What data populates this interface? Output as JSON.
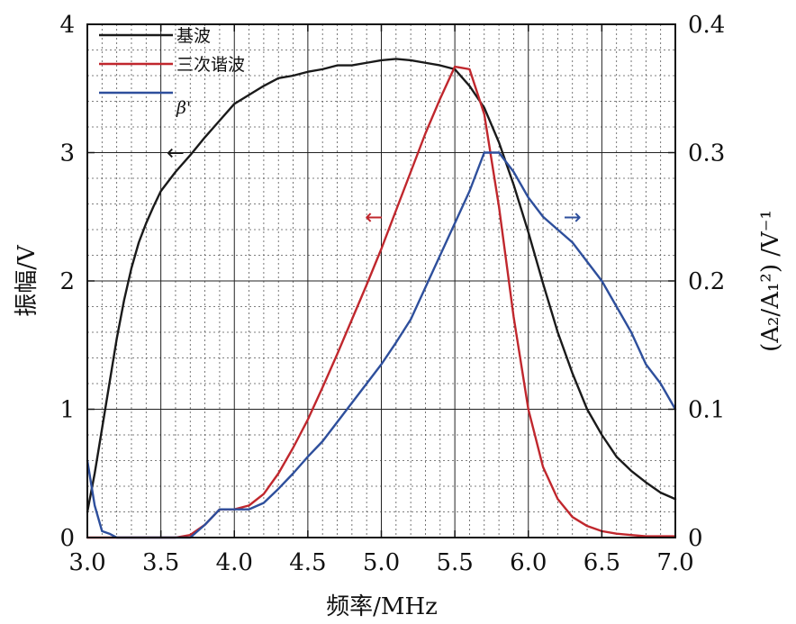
{
  "chart_data": {
    "type": "line",
    "xlabel": "频率/MHz",
    "ylabel_left": "振幅/V",
    "ylabel_right": "(A₂/A₁²) /V⁻¹",
    "xlim": [
      3.0,
      7.0
    ],
    "ylim_left": [
      0,
      4
    ],
    "ylim_right": [
      0,
      0.4
    ],
    "x_ticks": [
      "3.0",
      "3.5",
      "4.0",
      "4.5",
      "5.0",
      "5.5",
      "6.0",
      "6.5",
      "7.0"
    ],
    "y_ticks_left": [
      "0",
      "1",
      "2",
      "3",
      "4"
    ],
    "y_ticks_right": [
      "0",
      "0.1",
      "0.2",
      "0.3",
      "0.4"
    ],
    "grid": true,
    "series": [
      {
        "name": "基波",
        "axis": "left",
        "color": "#1a1a1a",
        "x": [
          3.0,
          3.05,
          3.1,
          3.15,
          3.2,
          3.25,
          3.3,
          3.35,
          3.4,
          3.45,
          3.5,
          3.6,
          3.7,
          3.8,
          3.9,
          4.0,
          4.1,
          4.2,
          4.3,
          4.4,
          4.5,
          4.6,
          4.7,
          4.8,
          4.9,
          5.0,
          5.1,
          5.2,
          5.3,
          5.4,
          5.5,
          5.6,
          5.7,
          5.8,
          5.9,
          6.0,
          6.1,
          6.2,
          6.3,
          6.4,
          6.5,
          6.6,
          6.7,
          6.8,
          6.9,
          7.0
        ],
        "y": [
          0.2,
          0.5,
          0.85,
          1.2,
          1.55,
          1.85,
          2.1,
          2.3,
          2.45,
          2.58,
          2.7,
          2.85,
          2.98,
          3.12,
          3.25,
          3.38,
          3.45,
          3.52,
          3.58,
          3.6,
          3.63,
          3.65,
          3.68,
          3.68,
          3.7,
          3.72,
          3.73,
          3.72,
          3.7,
          3.68,
          3.65,
          3.52,
          3.35,
          3.08,
          2.75,
          2.38,
          1.98,
          1.6,
          1.28,
          1.0,
          0.8,
          0.63,
          0.52,
          0.43,
          0.35,
          0.3
        ]
      },
      {
        "name": "三次谐波",
        "axis": "left",
        "color": "#c0272d",
        "x": [
          3.0,
          3.1,
          3.2,
          3.3,
          3.4,
          3.5,
          3.6,
          3.7,
          3.8,
          3.9,
          4.0,
          4.1,
          4.2,
          4.3,
          4.4,
          4.5,
          4.6,
          4.7,
          4.8,
          4.9,
          5.0,
          5.1,
          5.2,
          5.3,
          5.4,
          5.5,
          5.6,
          5.7,
          5.8,
          5.9,
          6.0,
          6.1,
          6.2,
          6.3,
          6.4,
          6.5,
          6.6,
          6.7,
          6.8,
          6.9,
          7.0
        ],
        "y": [
          0.0,
          0.0,
          0.0,
          0.0,
          0.0,
          0.0,
          0.0,
          0.02,
          0.1,
          0.22,
          0.22,
          0.25,
          0.34,
          0.5,
          0.7,
          0.92,
          1.17,
          1.43,
          1.7,
          1.97,
          2.25,
          2.55,
          2.85,
          3.15,
          3.42,
          3.67,
          3.65,
          3.3,
          2.58,
          1.72,
          1.0,
          0.55,
          0.3,
          0.16,
          0.09,
          0.05,
          0.03,
          0.02,
          0.01,
          0.01,
          0.01
        ]
      },
      {
        "name": "β'",
        "axis": "right",
        "color": "#2e4f9c",
        "x": [
          3.0,
          3.05,
          3.1,
          3.15,
          3.2,
          3.3,
          3.4,
          3.5,
          3.6,
          3.7,
          3.8,
          3.9,
          4.0,
          4.1,
          4.2,
          4.3,
          4.4,
          4.5,
          4.6,
          4.7,
          4.8,
          4.9,
          5.0,
          5.1,
          5.2,
          5.3,
          5.4,
          5.5,
          5.6,
          5.7,
          5.8,
          5.9,
          6.0,
          6.1,
          6.2,
          6.3,
          6.4,
          6.5,
          6.6,
          6.7,
          6.8,
          6.9,
          7.0
        ],
        "y": [
          0.06,
          0.025,
          0.005,
          0.003,
          0.0,
          0.0,
          0.0,
          0.0,
          0.0,
          0.0,
          0.01,
          0.022,
          0.022,
          0.022,
          0.027,
          0.038,
          0.05,
          0.063,
          0.075,
          0.09,
          0.105,
          0.12,
          0.135,
          0.152,
          0.17,
          0.195,
          0.22,
          0.245,
          0.27,
          0.3,
          0.3,
          0.285,
          0.265,
          0.25,
          0.24,
          0.23,
          0.215,
          0.2,
          0.18,
          0.16,
          0.135,
          0.12,
          0.1
        ]
      }
    ],
    "annotations": [
      {
        "text": "←",
        "color": "#1a1a1a",
        "x": 3.6,
        "y": 3.0,
        "axis": "left"
      },
      {
        "text": "←",
        "color": "#c0272d",
        "x": 4.95,
        "y": 2.5,
        "axis": "left"
      },
      {
        "text": "→",
        "color": "#2e4f9c",
        "x": 6.3,
        "y": 0.25,
        "axis": "right"
      }
    ]
  }
}
